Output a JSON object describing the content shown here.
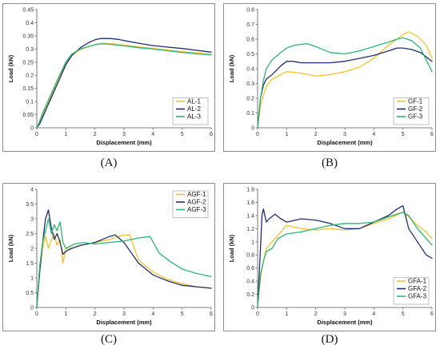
{
  "panels": [
    {
      "caption": "(A)"
    },
    {
      "caption": "(B)"
    },
    {
      "caption": "(C)"
    },
    {
      "caption": "(D)"
    }
  ],
  "chart_data": [
    {
      "type": "line",
      "xlabel": "Displacement (mm)",
      "ylabel": "Load (kN)",
      "xlim": [
        0,
        6
      ],
      "ylim": [
        0,
        0.45
      ],
      "xticks": [
        0,
        1,
        2,
        3,
        4,
        5,
        6
      ],
      "yticks": [
        0,
        0.05,
        0.1,
        0.15,
        0.2,
        0.25,
        0.3,
        0.35,
        0.4,
        0.45
      ],
      "grid": false,
      "legend_position": "bottom-right",
      "series": [
        {
          "name": "AL-1",
          "color": "#F6C12B",
          "x": [
            0,
            0.1,
            0.2,
            0.4,
            0.6,
            0.8,
            1.0,
            1.2,
            1.5,
            1.8,
            2.0,
            2.3,
            2.6,
            3.0,
            3.5,
            4.0,
            4.5,
            5.0,
            5.5,
            6.0
          ],
          "y": [
            0,
            0.02,
            0.05,
            0.1,
            0.15,
            0.2,
            0.245,
            0.275,
            0.298,
            0.31,
            0.317,
            0.322,
            0.32,
            0.315,
            0.308,
            0.302,
            0.296,
            0.29,
            0.285,
            0.28
          ]
        },
        {
          "name": "AL-2",
          "color": "#1F2D6E",
          "x": [
            0,
            0.1,
            0.2,
            0.4,
            0.6,
            0.8,
            1.0,
            1.2,
            1.5,
            1.8,
            2.0,
            2.2,
            2.5,
            2.8,
            3.0,
            3.5,
            4.0,
            4.5,
            5.0,
            5.5,
            6.0
          ],
          "y": [
            0,
            0.015,
            0.04,
            0.09,
            0.14,
            0.19,
            0.24,
            0.275,
            0.305,
            0.325,
            0.335,
            0.34,
            0.34,
            0.337,
            0.332,
            0.322,
            0.313,
            0.307,
            0.302,
            0.295,
            0.288
          ]
        },
        {
          "name": "AL-3",
          "color": "#2BB673",
          "x": [
            0,
            0.1,
            0.2,
            0.4,
            0.6,
            0.8,
            1.0,
            1.2,
            1.5,
            1.8,
            2.0,
            2.2,
            2.5,
            3.0,
            3.5,
            4.0,
            4.5,
            5.0,
            5.5,
            6.0
          ],
          "y": [
            0,
            0.025,
            0.055,
            0.105,
            0.155,
            0.205,
            0.25,
            0.28,
            0.3,
            0.31,
            0.316,
            0.32,
            0.318,
            0.312,
            0.305,
            0.3,
            0.293,
            0.287,
            0.282,
            0.277
          ]
        }
      ]
    },
    {
      "type": "line",
      "xlabel": "Displacement (mm)",
      "ylabel": "Load (kN)",
      "xlim": [
        0,
        6
      ],
      "ylim": [
        0,
        0.8
      ],
      "xticks": [
        0,
        1,
        2,
        3,
        4,
        5,
        6
      ],
      "yticks": [
        0,
        0.1,
        0.2,
        0.3,
        0.4,
        0.5,
        0.6,
        0.7,
        0.8
      ],
      "grid": false,
      "legend_position": "bottom-right",
      "series": [
        {
          "name": "GF-1",
          "color": "#F6C12B",
          "x": [
            0,
            0.1,
            0.2,
            0.3,
            0.5,
            0.8,
            1.0,
            1.5,
            2.0,
            2.5,
            3.0,
            3.5,
            4.0,
            4.5,
            4.8,
            5.0,
            5.2,
            5.5,
            5.8,
            6.0
          ],
          "y": [
            0,
            0.15,
            0.22,
            0.28,
            0.33,
            0.36,
            0.38,
            0.37,
            0.35,
            0.36,
            0.38,
            0.41,
            0.47,
            0.56,
            0.6,
            0.63,
            0.65,
            0.62,
            0.56,
            0.47
          ]
        },
        {
          "name": "GF-2",
          "color": "#1F2D6E",
          "x": [
            0,
            0.1,
            0.2,
            0.3,
            0.5,
            0.8,
            1.0,
            1.2,
            1.5,
            2.0,
            2.5,
            3.0,
            3.5,
            4.0,
            4.5,
            4.8,
            5.0,
            5.3,
            5.6,
            6.0
          ],
          "y": [
            0,
            0.2,
            0.29,
            0.33,
            0.36,
            0.42,
            0.45,
            0.45,
            0.44,
            0.44,
            0.44,
            0.45,
            0.47,
            0.49,
            0.52,
            0.54,
            0.54,
            0.53,
            0.51,
            0.45
          ]
        },
        {
          "name": "GF-3",
          "color": "#2BB673",
          "x": [
            0,
            0.1,
            0.2,
            0.3,
            0.5,
            0.8,
            1.0,
            1.3,
            1.7,
            2.0,
            2.5,
            3.0,
            3.5,
            4.0,
            4.5,
            4.8,
            5.0,
            5.3,
            5.6,
            6.0
          ],
          "y": [
            0,
            0.2,
            0.32,
            0.4,
            0.46,
            0.51,
            0.54,
            0.56,
            0.57,
            0.55,
            0.51,
            0.5,
            0.52,
            0.55,
            0.58,
            0.6,
            0.61,
            0.59,
            0.54,
            0.38
          ]
        }
      ]
    },
    {
      "type": "line",
      "xlabel": "Displacement (mm)",
      "ylabel": "Load (kN)",
      "xlim": [
        0,
        6
      ],
      "ylim": [
        0,
        4
      ],
      "xticks": [
        0,
        1,
        2,
        3,
        4,
        5,
        6
      ],
      "yticks": [
        0,
        0.5,
        1,
        1.5,
        2,
        2.5,
        3,
        3.5,
        4
      ],
      "grid": false,
      "legend_position": "top-right",
      "series": [
        {
          "name": "AGF-1",
          "color": "#F6C12B",
          "x": [
            0,
            0.1,
            0.2,
            0.3,
            0.4,
            0.5,
            0.6,
            0.7,
            0.8,
            0.9,
            1.0,
            1.2,
            1.5,
            2.0,
            2.5,
            3.0,
            3.2,
            3.5,
            4.0,
            4.5,
            5.0,
            5.5,
            6.0
          ],
          "y": [
            0,
            1.2,
            2.0,
            2.4,
            2.0,
            2.3,
            2.5,
            2.1,
            2.3,
            1.5,
            2.0,
            2.0,
            2.1,
            2.2,
            2.3,
            2.45,
            2.45,
            1.6,
            1.2,
            0.95,
            0.8,
            0.7,
            0.65
          ]
        },
        {
          "name": "AGF-2",
          "color": "#1F2D6E",
          "x": [
            0,
            0.1,
            0.2,
            0.3,
            0.4,
            0.5,
            0.6,
            0.7,
            0.8,
            0.9,
            1.0,
            1.2,
            1.5,
            2.0,
            2.5,
            2.7,
            3.0,
            3.5,
            4.0,
            4.5,
            5.0,
            5.5,
            6.0
          ],
          "y": [
            0,
            1.2,
            2.2,
            3.0,
            3.3,
            2.7,
            2.3,
            2.5,
            2.2,
            1.8,
            1.9,
            2.0,
            2.1,
            2.2,
            2.4,
            2.45,
            2.2,
            1.5,
            1.1,
            0.9,
            0.75,
            0.7,
            0.65
          ]
        },
        {
          "name": "AGF-3",
          "color": "#2BB673",
          "x": [
            0,
            0.1,
            0.2,
            0.3,
            0.4,
            0.5,
            0.6,
            0.7,
            0.8,
            0.9,
            1.0,
            1.3,
            1.6,
            2.0,
            2.5,
            3.0,
            3.5,
            3.9,
            4.2,
            4.6,
            5.0,
            5.5,
            6.0
          ],
          "y": [
            0,
            1.4,
            2.2,
            2.6,
            3.0,
            2.5,
            2.8,
            2.6,
            2.9,
            2.2,
            2.0,
            2.15,
            2.2,
            2.15,
            2.2,
            2.25,
            2.35,
            2.4,
            1.85,
            1.55,
            1.3,
            1.15,
            1.05
          ]
        }
      ]
    },
    {
      "type": "line",
      "xlabel": "Displacement (mm)",
      "ylabel": "Load (kN)",
      "xlim": [
        0,
        6
      ],
      "ylim": [
        0,
        1.8
      ],
      "xticks": [
        0,
        1,
        2,
        3,
        4,
        5,
        6
      ],
      "yticks": [
        0,
        0.2,
        0.4,
        0.6,
        0.8,
        1,
        1.2,
        1.4,
        1.6,
        1.8
      ],
      "grid": false,
      "legend_position": "bottom-right",
      "series": [
        {
          "name": "GFA-1",
          "color": "#F6C12B",
          "x": [
            0,
            0.1,
            0.2,
            0.3,
            0.5,
            0.7,
            1.0,
            1.5,
            2.0,
            2.5,
            3.0,
            3.5,
            4.0,
            4.5,
            5.0,
            5.2,
            5.5,
            5.8,
            6.0
          ],
          "y": [
            0,
            0.45,
            0.7,
            0.9,
            1.0,
            1.1,
            1.25,
            1.2,
            1.18,
            1.2,
            1.18,
            1.2,
            1.28,
            1.35,
            1.45,
            1.38,
            1.25,
            1.15,
            1.05
          ]
        },
        {
          "name": "GFA-2",
          "color": "#1F2D6E",
          "x": [
            0,
            0.1,
            0.15,
            0.2,
            0.3,
            0.4,
            0.6,
            0.8,
            1.0,
            1.5,
            2.0,
            2.5,
            3.0,
            3.5,
            4.0,
            4.5,
            4.8,
            5.0,
            5.2,
            5.5,
            5.8,
            6.0
          ],
          "y": [
            0,
            0.9,
            1.4,
            1.5,
            1.3,
            1.35,
            1.42,
            1.35,
            1.3,
            1.35,
            1.33,
            1.28,
            1.2,
            1.2,
            1.3,
            1.4,
            1.5,
            1.55,
            1.2,
            1.0,
            0.8,
            0.75
          ]
        },
        {
          "name": "GFA-3",
          "color": "#2BB673",
          "x": [
            0,
            0.1,
            0.2,
            0.3,
            0.5,
            0.7,
            1.0,
            1.5,
            2.0,
            2.5,
            3.0,
            3.5,
            4.0,
            4.5,
            5.0,
            5.2,
            5.5,
            5.8,
            6.0
          ],
          "y": [
            0,
            0.5,
            0.7,
            0.85,
            0.9,
            1.05,
            1.12,
            1.15,
            1.2,
            1.25,
            1.28,
            1.28,
            1.3,
            1.38,
            1.45,
            1.4,
            1.2,
            1.05,
            0.95
          ]
        }
      ]
    }
  ]
}
